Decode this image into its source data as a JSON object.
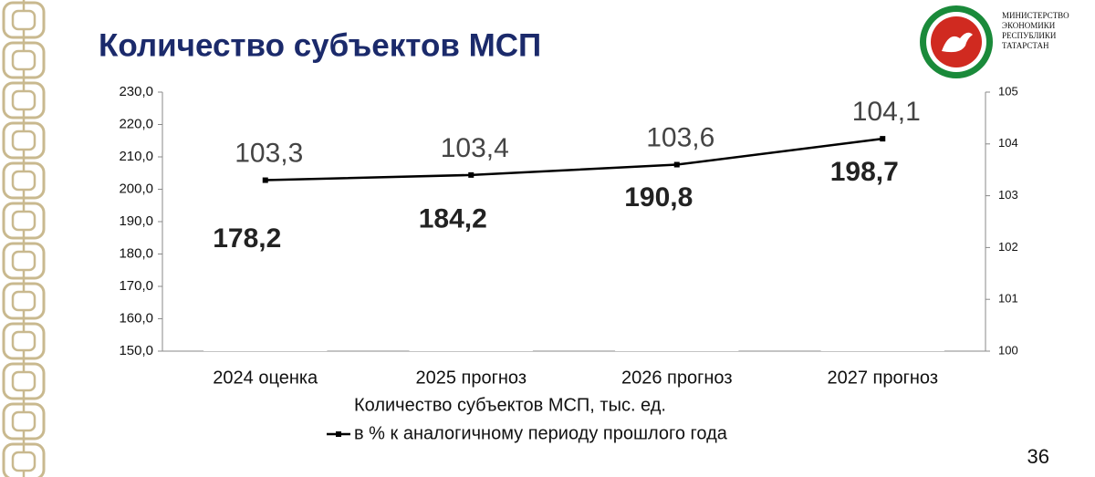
{
  "slide": {
    "ministry": [
      "МИНИСТЕРСТВО",
      "ЭКОНОМИКИ",
      "РЕСПУБЛИКИ",
      "ТАТАРСТАН"
    ],
    "page_number": "36"
  },
  "chart_data": {
    "type": "bar_line",
    "title": "Количество субъектов МСП",
    "categories": [
      "2024 оценка",
      "2025 прогноз",
      "2026 прогноз",
      "2027 прогноз"
    ],
    "series": [
      {
        "name": "Количество субъектов МСП, тыс. ед.",
        "color": "#ffffff",
        "type": "bar",
        "values": [
          178.2,
          184.2,
          190.8,
          198.7
        ],
        "value_labels": [
          "178,2",
          "184,2",
          "190,8",
          "198,7"
        ]
      },
      {
        "name": "в % к аналогичному периоду прошлого года",
        "color": "#000000",
        "type": "line",
        "axis": "y2",
        "values": [
          103.3,
          103.4,
          103.6,
          104.1
        ],
        "value_labels": [
          "103,3",
          "103,4",
          "103,6",
          "104,1"
        ]
      }
    ],
    "ylim": [
      150,
      230
    ],
    "yticks": [
      {
        "value": 150,
        "label": "150,0"
      },
      {
        "value": 160,
        "label": "160,0"
      },
      {
        "value": 170,
        "label": "170,0"
      },
      {
        "value": 180,
        "label": "180,0"
      },
      {
        "value": 190,
        "label": "190,0"
      },
      {
        "value": 200,
        "label": "200,0"
      },
      {
        "value": 210,
        "label": "210,0"
      },
      {
        "value": 220,
        "label": "220,0"
      },
      {
        "value": 230,
        "label": "230,0"
      }
    ],
    "y2lim": [
      100,
      105
    ],
    "y2ticks": [
      100,
      101,
      102,
      103,
      104,
      105
    ],
    "grid": false
  }
}
